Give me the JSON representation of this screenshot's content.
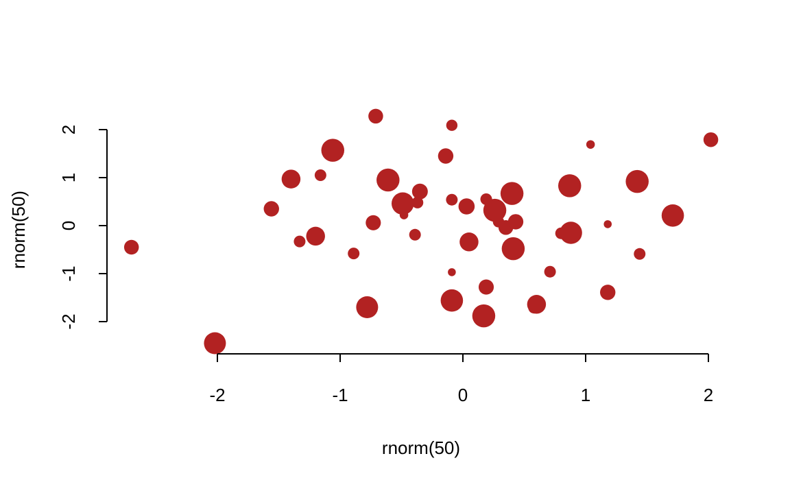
{
  "chart_data": {
    "type": "scatter",
    "title": "",
    "xlabel": "rnorm(50)",
    "ylabel": "rnorm(50)",
    "xlim": [
      -2.7,
      2.0
    ],
    "ylim": [
      -2.45,
      2.3
    ],
    "x_ticks": [
      -2,
      -1,
      0,
      1,
      2
    ],
    "y_ticks": [
      -2,
      -1,
      0,
      1,
      2
    ],
    "x_tick_labels": [
      "-2",
      "-1",
      "0",
      "1",
      "2"
    ],
    "y_tick_labels": [
      "-2",
      "-1",
      "0",
      "1",
      "2"
    ],
    "grid": false,
    "legend": "none",
    "point_color": "#B22222",
    "points": [
      {
        "x": -2.7,
        "y": -0.45,
        "size": 0.45
      },
      {
        "x": -2.02,
        "y": -2.45,
        "size": 0.8
      },
      {
        "x": -1.56,
        "y": 0.35,
        "size": 0.48
      },
      {
        "x": -1.4,
        "y": 0.97,
        "size": 0.65
      },
      {
        "x": -1.33,
        "y": -0.33,
        "size": 0.3
      },
      {
        "x": -1.2,
        "y": -0.22,
        "size": 0.65
      },
      {
        "x": -1.16,
        "y": 1.05,
        "size": 0.3
      },
      {
        "x": -1.06,
        "y": 1.57,
        "size": 0.85
      },
      {
        "x": -0.89,
        "y": -0.58,
        "size": 0.3
      },
      {
        "x": -0.78,
        "y": -1.7,
        "size": 0.8
      },
      {
        "x": -0.73,
        "y": 0.06,
        "size": 0.47
      },
      {
        "x": -0.71,
        "y": 2.28,
        "size": 0.45
      },
      {
        "x": -0.61,
        "y": 0.95,
        "size": 0.85
      },
      {
        "x": -0.49,
        "y": 0.46,
        "size": 0.82
      },
      {
        "x": -0.48,
        "y": 0.22,
        "size": 0.15
      },
      {
        "x": -0.39,
        "y": -0.19,
        "size": 0.3
      },
      {
        "x": -0.37,
        "y": 0.48,
        "size": 0.3
      },
      {
        "x": -0.35,
        "y": 0.71,
        "size": 0.5
      },
      {
        "x": -0.14,
        "y": 1.45,
        "size": 0.48
      },
      {
        "x": -0.09,
        "y": 2.09,
        "size": 0.28
      },
      {
        "x": -0.09,
        "y": 0.54,
        "size": 0.3
      },
      {
        "x": -0.09,
        "y": -0.97,
        "size": 0.12
      },
      {
        "x": -0.09,
        "y": -1.56,
        "size": 0.82
      },
      {
        "x": 0.03,
        "y": 0.4,
        "size": 0.52
      },
      {
        "x": 0.05,
        "y": -0.34,
        "size": 0.65
      },
      {
        "x": 0.17,
        "y": -1.88,
        "size": 0.85
      },
      {
        "x": 0.19,
        "y": 0.55,
        "size": 0.3
      },
      {
        "x": 0.19,
        "y": -1.28,
        "size": 0.47
      },
      {
        "x": 0.26,
        "y": 0.32,
        "size": 0.85
      },
      {
        "x": 0.29,
        "y": 0.08,
        "size": 0.28
      },
      {
        "x": 0.35,
        "y": -0.04,
        "size": 0.45
      },
      {
        "x": 0.4,
        "y": 0.67,
        "size": 0.85
      },
      {
        "x": 0.41,
        "y": -0.48,
        "size": 0.85
      },
      {
        "x": 0.43,
        "y": 0.08,
        "size": 0.48
      },
      {
        "x": 0.58,
        "y": -1.71,
        "size": 0.3
      },
      {
        "x": 0.6,
        "y": -1.64,
        "size": 0.65
      },
      {
        "x": 0.71,
        "y": -0.96,
        "size": 0.3
      },
      {
        "x": 0.8,
        "y": -0.16,
        "size": 0.3
      },
      {
        "x": 0.87,
        "y": 0.83,
        "size": 0.85
      },
      {
        "x": 0.88,
        "y": -0.15,
        "size": 0.82
      },
      {
        "x": 1.04,
        "y": 1.69,
        "size": 0.15
      },
      {
        "x": 1.18,
        "y": 0.03,
        "size": 0.12
      },
      {
        "x": 1.18,
        "y": -1.39,
        "size": 0.48
      },
      {
        "x": 1.42,
        "y": 0.92,
        "size": 0.85
      },
      {
        "x": 1.44,
        "y": -0.59,
        "size": 0.3
      },
      {
        "x": 1.71,
        "y": 0.21,
        "size": 0.82
      },
      {
        "x": 2.02,
        "y": 1.79,
        "size": 0.45
      }
    ]
  }
}
